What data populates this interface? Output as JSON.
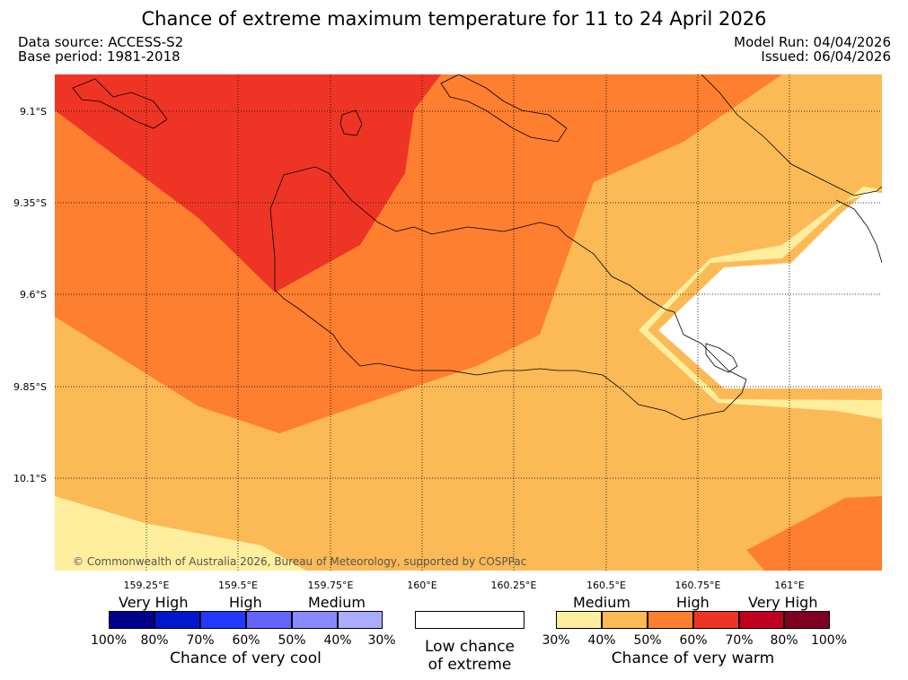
{
  "header": {
    "title": "Chance of extreme maximum temperature for 11 to 24 April 2026",
    "data_source": "Data source: ACCESS-S2",
    "base_period": "Base period: 1981-2018",
    "model_run": "Model Run: 04/04/2026",
    "issued": "Issued: 06/04/2026"
  },
  "map": {
    "lat_labels": [
      "9.1°S",
      "9.35°S",
      "9.6°S",
      "9.85°S",
      "10.1°S"
    ],
    "lon_labels": [
      "159.25°E",
      "159.5°E",
      "159.75°E",
      "160°E",
      "160.25°E",
      "160.5°E",
      "160.75°E",
      "161°E"
    ],
    "copyright": "© Commonwealth of Australia 2026, Bureau of Meteorology, supported by COSPPac"
  },
  "legend": {
    "cool": {
      "headers": [
        "Very High",
        "High",
        "Medium"
      ],
      "colors": [
        "#00008b",
        "#0018cd",
        "#2238ff",
        "#6464ff",
        "#8989ff",
        "#ababff"
      ],
      "ticks": [
        "100%",
        "80%",
        "70%",
        "60%",
        "50%",
        "40%",
        "30%"
      ],
      "caption": "Chance of very cool"
    },
    "low": {
      "caption_line1": "Low chance",
      "caption_line2": "of extreme"
    },
    "warm": {
      "headers": [
        "Medium",
        "High",
        "Very High"
      ],
      "colors": [
        "#ffee9e",
        "#fcba56",
        "#fe7f2f",
        "#ee3525",
        "#c00021",
        "#7f0022"
      ],
      "ticks": [
        "30%",
        "40%",
        "50%",
        "60%",
        "70%",
        "80%",
        "100%"
      ],
      "caption": "Chance of very warm"
    }
  }
}
